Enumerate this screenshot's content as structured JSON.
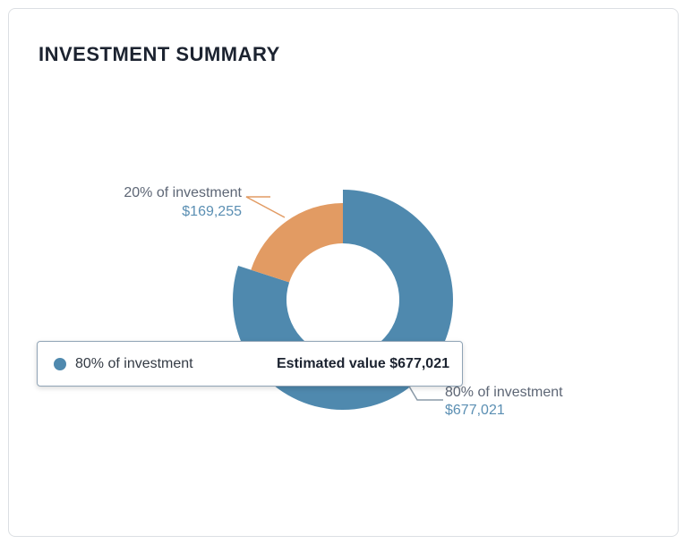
{
  "card": {
    "title": "INVESTMENT SUMMARY"
  },
  "chart_data": {
    "type": "pie",
    "title": "INVESTMENT SUMMARY",
    "donut": true,
    "slices": [
      {
        "name": "80% of investment",
        "percent": 80,
        "value": 677021,
        "value_label": "$677,021",
        "color": "#4f89ae",
        "highlighted": true
      },
      {
        "name": "20% of investment",
        "percent": 20,
        "value": 169255,
        "value_label": "$169,255",
        "color": "#e29b63",
        "highlighted": false
      }
    ]
  },
  "tooltip": {
    "label": "80% of investment",
    "value": "Estimated value $677,021",
    "color": "#4f89ae"
  },
  "colors": {
    "label_text": "#5d6675",
    "value_text": "#5b8fb3",
    "leader": "#8a9aa8"
  }
}
